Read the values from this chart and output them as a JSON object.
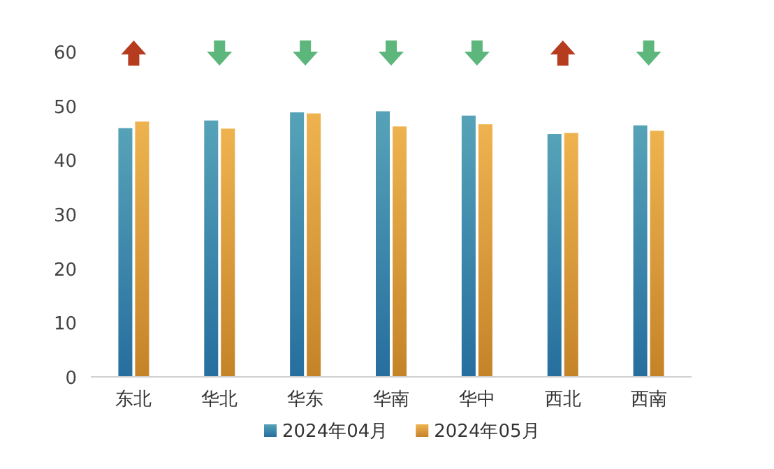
{
  "chart_data": {
    "type": "bar",
    "categories": [
      "东北",
      "华北",
      "华东",
      "华南",
      "华中",
      "西北",
      "西南"
    ],
    "series": [
      {
        "name": "2024年04月",
        "color": "#2a7db3",
        "values": [
          45.9,
          47.3,
          48.8,
          49.0,
          48.2,
          44.8,
          46.4
        ]
      },
      {
        "name": "2024年05月",
        "color": "#e0952e",
        "values": [
          47.1,
          45.8,
          48.6,
          46.2,
          46.6,
          45.0,
          45.4
        ]
      }
    ],
    "ylim": [
      0,
      60
    ],
    "yticks": [
      0,
      10,
      20,
      30,
      40,
      50,
      60
    ],
    "grid": false,
    "legend": "bottom"
  }
}
